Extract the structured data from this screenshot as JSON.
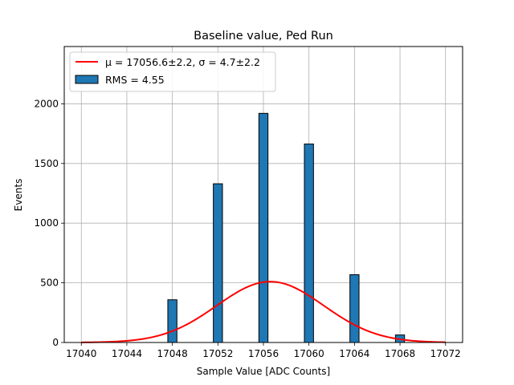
{
  "chart_data": {
    "type": "bar",
    "title": "Baseline value, Ped Run",
    "xlabel": "Sample Value [ADC Counts]",
    "ylabel": "Events",
    "xlim": [
      17038.5,
      17073.5
    ],
    "ylim": [
      0,
      2480
    ],
    "grid": true,
    "xticks": [
      17040,
      17044,
      17048,
      17052,
      17056,
      17060,
      17064,
      17068,
      17072
    ],
    "yticks": [
      0,
      500,
      1000,
      1500,
      2000
    ],
    "bin_width": 0.8,
    "histogram": {
      "name": "RMS = 4.55",
      "color": "#1f77b4",
      "edgecolor": "#000000",
      "bins": [
        17048,
        17052,
        17056,
        17060,
        17064,
        17068
      ],
      "counts": [
        358,
        1330,
        1920,
        1663,
        568,
        63
      ]
    },
    "fit": {
      "name_prefix": "μ = 17056.6±2.2, σ = 4.7±2.2",
      "color": "#ff0000",
      "mu": 17056.6,
      "sigma": 4.7,
      "amplitude": 510,
      "x_range": [
        17040,
        17072
      ]
    },
    "legend": {
      "location": "upper left",
      "entries": [
        {
          "label": "μ = 17056.6±2.2, σ = 4.7±2.2",
          "kind": "line",
          "color": "#ff0000"
        },
        {
          "label": "RMS = 4.55",
          "kind": "patch",
          "color": "#1f77b4"
        }
      ]
    }
  }
}
